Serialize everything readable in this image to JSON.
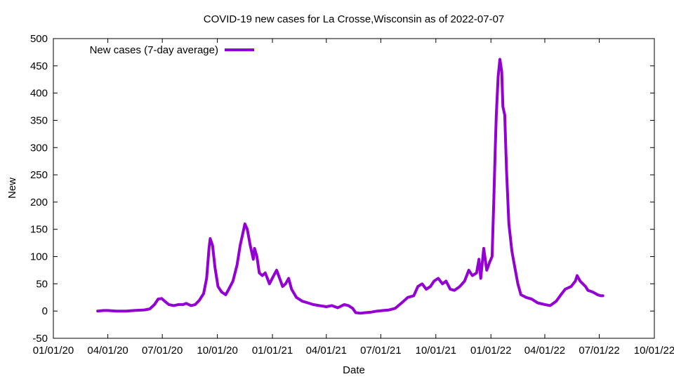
{
  "chart_data": {
    "type": "line",
    "title": "COVID-19 new cases for La Crosse,Wisconsin as of 2022-07-07",
    "xlabel": "Date",
    "ylabel": "New",
    "x_axis": {
      "type": "date",
      "min": "2020-01-01",
      "max": "2022-10-01",
      "ticks": [
        {
          "date": "2020-01-01",
          "label": "01/01/20"
        },
        {
          "date": "2020-04-01",
          "label": "04/01/20"
        },
        {
          "date": "2020-07-01",
          "label": "07/01/20"
        },
        {
          "date": "2020-10-01",
          "label": "10/01/20"
        },
        {
          "date": "2021-01-01",
          "label": "01/01/21"
        },
        {
          "date": "2021-04-01",
          "label": "04/01/21"
        },
        {
          "date": "2021-07-01",
          "label": "07/01/21"
        },
        {
          "date": "2021-10-01",
          "label": "10/01/21"
        },
        {
          "date": "2022-01-01",
          "label": "01/01/22"
        },
        {
          "date": "2022-04-01",
          "label": "04/01/22"
        },
        {
          "date": "2022-07-01",
          "label": "07/01/22"
        },
        {
          "date": "2022-10-01",
          "label": "10/01/22"
        }
      ]
    },
    "y_axis": {
      "min": -50,
      "max": 500,
      "ticks": [
        -50,
        0,
        50,
        100,
        150,
        200,
        250,
        300,
        350,
        400,
        450,
        500
      ]
    },
    "grid": false,
    "legend_position": "top-left",
    "series": [
      {
        "name": "New cases (7-day average)",
        "color": "#9400D3",
        "points": [
          [
            "2020-03-15",
            0
          ],
          [
            "2020-03-25",
            1
          ],
          [
            "2020-04-01",
            1
          ],
          [
            "2020-04-15",
            0
          ],
          [
            "2020-05-01",
            0
          ],
          [
            "2020-05-15",
            1
          ],
          [
            "2020-06-01",
            2
          ],
          [
            "2020-06-10",
            4
          ],
          [
            "2020-06-18",
            12
          ],
          [
            "2020-06-24",
            22
          ],
          [
            "2020-06-30",
            23
          ],
          [
            "2020-07-05",
            18
          ],
          [
            "2020-07-12",
            12
          ],
          [
            "2020-07-20",
            10
          ],
          [
            "2020-07-28",
            12
          ],
          [
            "2020-08-05",
            12
          ],
          [
            "2020-08-10",
            14
          ],
          [
            "2020-08-18",
            10
          ],
          [
            "2020-08-25",
            12
          ],
          [
            "2020-09-01",
            20
          ],
          [
            "2020-09-08",
            32
          ],
          [
            "2020-09-13",
            60
          ],
          [
            "2020-09-17",
            115
          ],
          [
            "2020-09-19",
            133
          ],
          [
            "2020-09-23",
            120
          ],
          [
            "2020-09-27",
            80
          ],
          [
            "2020-10-02",
            45
          ],
          [
            "2020-10-08",
            35
          ],
          [
            "2020-10-15",
            30
          ],
          [
            "2020-10-20",
            40
          ],
          [
            "2020-10-27",
            55
          ],
          [
            "2020-11-03",
            85
          ],
          [
            "2020-11-08",
            120
          ],
          [
            "2020-11-13",
            145
          ],
          [
            "2020-11-16",
            160
          ],
          [
            "2020-11-20",
            150
          ],
          [
            "2020-11-25",
            120
          ],
          [
            "2020-11-30",
            95
          ],
          [
            "2020-12-02",
            115
          ],
          [
            "2020-12-06",
            100
          ],
          [
            "2020-12-10",
            70
          ],
          [
            "2020-12-15",
            65
          ],
          [
            "2020-12-20",
            70
          ],
          [
            "2020-12-27",
            50
          ],
          [
            "2021-01-03",
            65
          ],
          [
            "2021-01-08",
            75
          ],
          [
            "2021-01-13",
            60
          ],
          [
            "2021-01-18",
            45
          ],
          [
            "2021-01-23",
            50
          ],
          [
            "2021-01-28",
            60
          ],
          [
            "2021-02-02",
            40
          ],
          [
            "2021-02-10",
            25
          ],
          [
            "2021-02-20",
            18
          ],
          [
            "2021-03-01",
            15
          ],
          [
            "2021-03-10",
            12
          ],
          [
            "2021-03-20",
            10
          ],
          [
            "2021-04-01",
            8
          ],
          [
            "2021-04-10",
            10
          ],
          [
            "2021-04-20",
            6
          ],
          [
            "2021-05-01",
            12
          ],
          [
            "2021-05-08",
            10
          ],
          [
            "2021-05-15",
            5
          ],
          [
            "2021-05-20",
            -3
          ],
          [
            "2021-05-28",
            -4
          ],
          [
            "2021-06-05",
            -3
          ],
          [
            "2021-06-15",
            -2
          ],
          [
            "2021-06-25",
            0
          ],
          [
            "2021-07-05",
            1
          ],
          [
            "2021-07-15",
            2
          ],
          [
            "2021-07-25",
            5
          ],
          [
            "2021-08-05",
            15
          ],
          [
            "2021-08-15",
            25
          ],
          [
            "2021-08-25",
            28
          ],
          [
            "2021-09-01",
            45
          ],
          [
            "2021-09-08",
            50
          ],
          [
            "2021-09-15",
            40
          ],
          [
            "2021-09-22",
            45
          ],
          [
            "2021-09-28",
            55
          ],
          [
            "2021-10-05",
            60
          ],
          [
            "2021-10-12",
            50
          ],
          [
            "2021-10-18",
            55
          ],
          [
            "2021-10-25",
            40
          ],
          [
            "2021-11-01",
            38
          ],
          [
            "2021-11-10",
            45
          ],
          [
            "2021-11-18",
            55
          ],
          [
            "2021-11-25",
            75
          ],
          [
            "2021-12-01",
            65
          ],
          [
            "2021-12-08",
            70
          ],
          [
            "2021-12-12",
            95
          ],
          [
            "2021-12-15",
            60
          ],
          [
            "2021-12-20",
            115
          ],
          [
            "2021-12-25",
            75
          ],
          [
            "2021-12-30",
            90
          ],
          [
            "2022-01-03",
            100
          ],
          [
            "2022-01-06",
            210
          ],
          [
            "2022-01-08",
            290
          ],
          [
            "2022-01-10",
            360
          ],
          [
            "2022-01-13",
            430
          ],
          [
            "2022-01-16",
            462
          ],
          [
            "2022-01-19",
            440
          ],
          [
            "2022-01-21",
            375
          ],
          [
            "2022-01-24",
            360
          ],
          [
            "2022-01-27",
            260
          ],
          [
            "2022-01-31",
            160
          ],
          [
            "2022-02-05",
            110
          ],
          [
            "2022-02-10",
            80
          ],
          [
            "2022-02-15",
            50
          ],
          [
            "2022-02-20",
            30
          ],
          [
            "2022-03-01",
            25
          ],
          [
            "2022-03-10",
            22
          ],
          [
            "2022-03-20",
            15
          ],
          [
            "2022-04-01",
            12
          ],
          [
            "2022-04-10",
            10
          ],
          [
            "2022-04-20",
            18
          ],
          [
            "2022-04-28",
            30
          ],
          [
            "2022-05-05",
            40
          ],
          [
            "2022-05-15",
            45
          ],
          [
            "2022-05-22",
            55
          ],
          [
            "2022-05-25",
            65
          ],
          [
            "2022-05-30",
            55
          ],
          [
            "2022-06-08",
            45
          ],
          [
            "2022-06-12",
            38
          ],
          [
            "2022-06-20",
            35
          ],
          [
            "2022-06-28",
            30
          ],
          [
            "2022-07-04",
            28
          ],
          [
            "2022-07-07",
            28
          ]
        ]
      }
    ]
  }
}
